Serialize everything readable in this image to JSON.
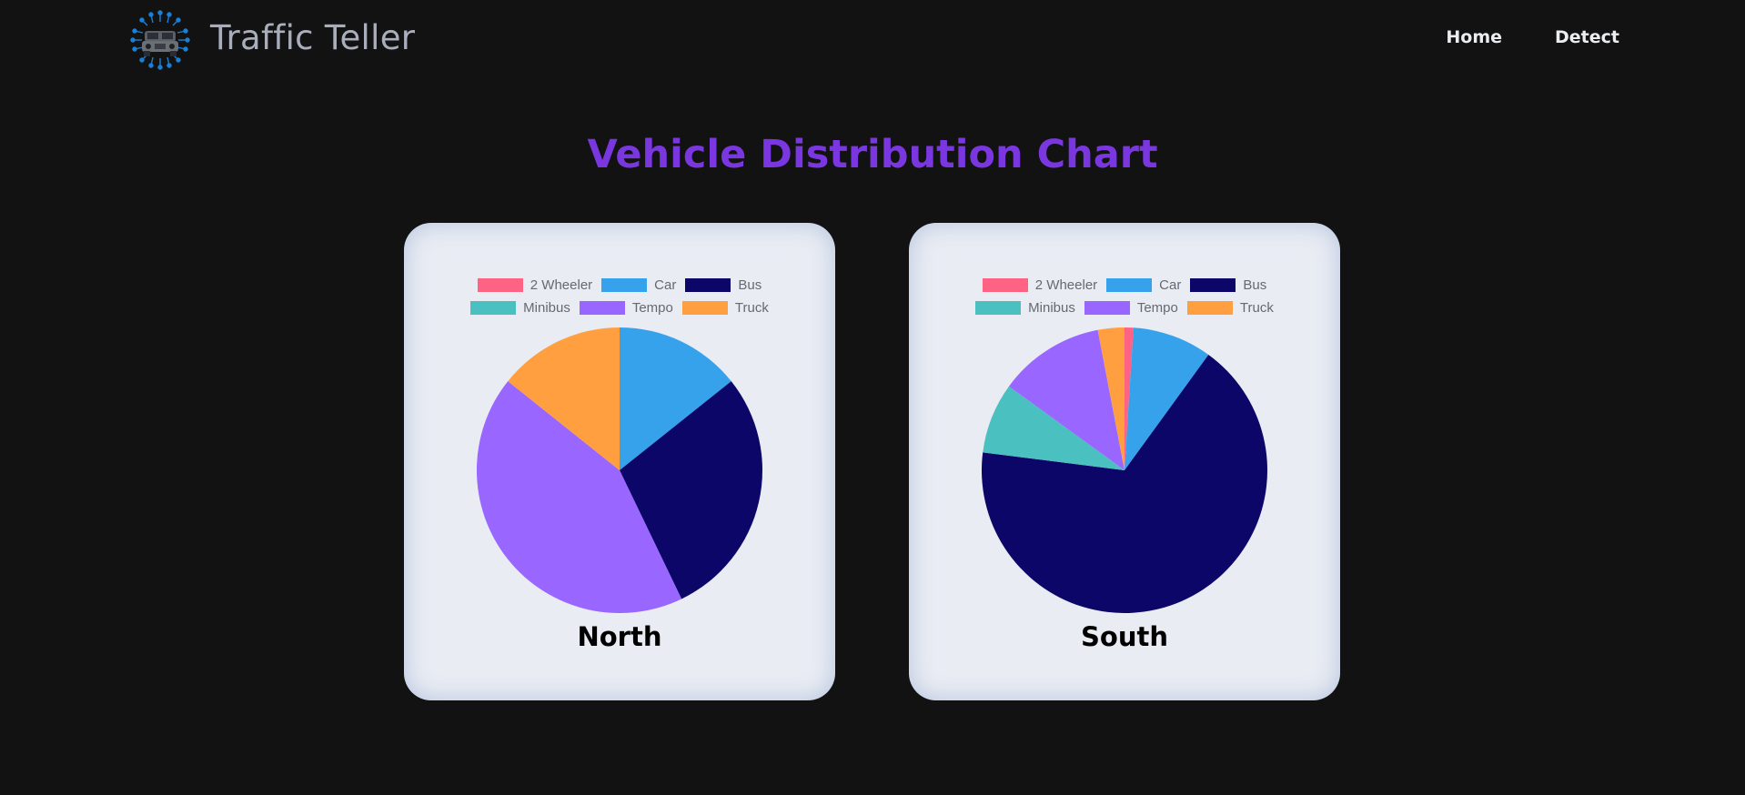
{
  "header": {
    "brand": "Traffic Teller",
    "logo_icon": "jeep-circuit-logo-icon",
    "nav": [
      {
        "label": "Home"
      },
      {
        "label": "Detect"
      }
    ]
  },
  "page": {
    "title": "Vehicle Distribution Chart"
  },
  "colors": {
    "background": "#121212",
    "title": "#7a37e0",
    "card": "#e9ecf3",
    "2 Wheeler": "#ff6384",
    "Car": "#36a2eb",
    "Bus": "#0b0668",
    "Minibus": "#4bc0c0",
    "Tempo": "#9966ff",
    "Truck": "#ff9f40"
  },
  "chart_data": [
    {
      "type": "pie",
      "title": "North",
      "categories": [
        "2 Wheeler",
        "Car",
        "Bus",
        "Minibus",
        "Tempo",
        "Truck"
      ],
      "values": [
        0,
        1,
        2,
        0,
        3,
        1
      ],
      "colors": [
        "#ff6384",
        "#36a2eb",
        "#0b0668",
        "#4bc0c0",
        "#9966ff",
        "#ff9f40"
      ],
      "legend": "top"
    },
    {
      "type": "pie",
      "title": "South",
      "categories": [
        "2 Wheeler",
        "Car",
        "Bus",
        "Minibus",
        "Tempo",
        "Truck"
      ],
      "values": [
        1,
        9,
        67,
        8,
        12,
        3
      ],
      "colors": [
        "#ff6384",
        "#36a2eb",
        "#0b0668",
        "#4bc0c0",
        "#9966ff",
        "#ff9f40"
      ],
      "legend": "top"
    }
  ]
}
